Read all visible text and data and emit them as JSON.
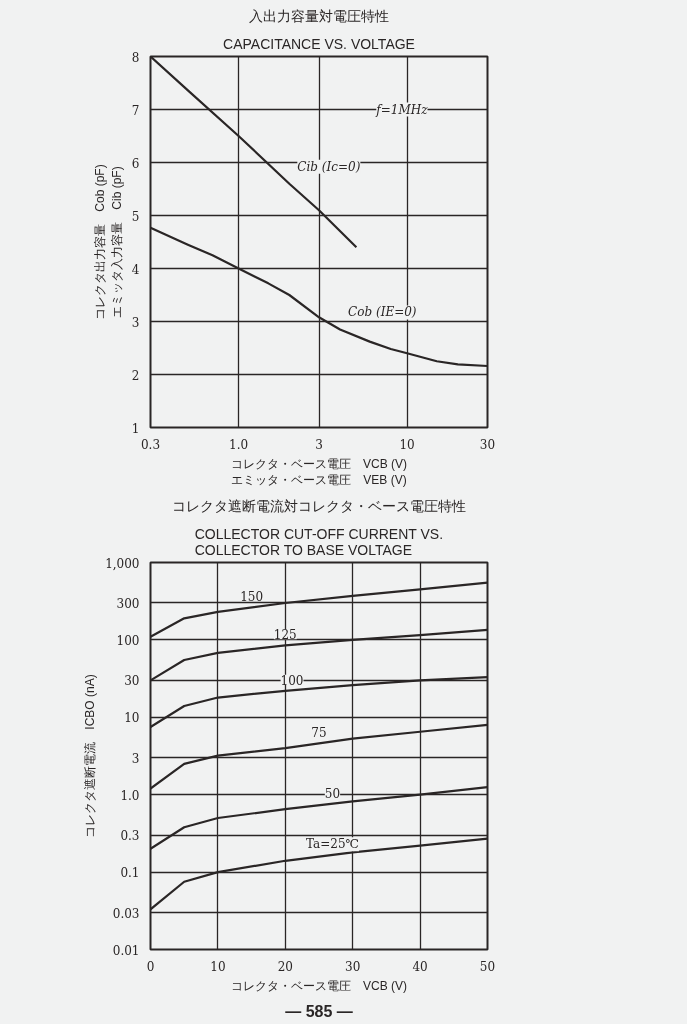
{
  "chart_data": [
    {
      "type": "line",
      "title": "入出力容量対電圧特性",
      "subtitle": "CAPACITANCE VS. VOLTAGE",
      "xlabel": "コレクタ・ベース電圧　VCB (V)\nエミッタ・ベース電圧　VEB (V)",
      "ylabel": "コレクタ出力容量　Cob (pF)\nエミッタ入力容量　Cib (pF)",
      "log": "x",
      "xlim": [
        0.3,
        30
      ],
      "xticks": [
        0.3,
        {
          "value": 1,
          "label": "1.0"
        },
        3,
        10,
        30
      ],
      "ylim": [
        1,
        8
      ],
      "yticks": [
        1,
        2,
        3,
        4,
        5,
        6,
        7,
        8
      ],
      "grid": true,
      "series": [
        {
          "name": "Cib (Ic=0)",
          "color": "#2a2626",
          "x": [
            0.3,
            0.5,
            1,
            2,
            3,
            5
          ],
          "values": [
            8,
            7.36,
            6.5,
            5.6,
            5.1,
            4.4
          ]
        },
        {
          "name": "Cob (IE=0)",
          "color": "#2a2626",
          "x": [
            0.3,
            0.5,
            0.7,
            1,
            1.5,
            2,
            3,
            4,
            6,
            8,
            10,
            15,
            20,
            30
          ],
          "values": [
            4.77,
            4.45,
            4.25,
            4.0,
            3.72,
            3.5,
            3.08,
            2.85,
            2.62,
            2.48,
            2.4,
            2.25,
            2.19,
            2.16
          ]
        }
      ],
      "annotations": [
        "f=1MHz"
      ]
    },
    {
      "type": "line",
      "title": "コレクタ遮断電流対コレクタ・ベース電圧特性",
      "subtitle": "COLLECTOR CUT-OFF CURRENT VS.\nCOLLECTOR TO BASE VOLTAGE",
      "xlabel": "コレクタ・ベース電圧　VCB (V)",
      "ylabel": "コレクタ遮断電流　ICBO (nA)",
      "log": "y",
      "xlim": [
        0,
        50
      ],
      "xticks": [
        0,
        10,
        20,
        30,
        40,
        50
      ],
      "ylim": [
        0.01,
        1000
      ],
      "yticks": [
        0.01,
        0.03,
        0.1,
        0.3,
        {
          "value": 1,
          "label": "1.0"
        },
        3,
        10,
        30,
        100,
        300,
        {
          "value": 1000,
          "label": "1,000"
        }
      ],
      "grid": true,
      "x": [
        0,
        5,
        10,
        20,
        30,
        40,
        50
      ],
      "series": [
        {
          "color": "#2a2626",
          "values": [
            110,
            190,
            230,
            300,
            370,
            450,
            550
          ]
        },
        {
          "color": "#2a2626",
          "values": [
            30,
            55,
            68,
            85,
            100,
            115,
            135
          ]
        },
        {
          "color": "#2a2626",
          "values": [
            7.5,
            14,
            18,
            22,
            26,
            30,
            33
          ]
        },
        {
          "color": "#2a2626",
          "values": [
            1.2,
            2.5,
            3.2,
            4,
            5.3,
            6.5,
            8
          ]
        },
        {
          "color": "#2a2626",
          "values": [
            0.2,
            0.38,
            0.5,
            0.65,
            0.82,
            1.0,
            1.25
          ]
        },
        {
          "color": "#2a2626",
          "values": [
            0.033,
            0.075,
            0.1,
            0.14,
            0.18,
            0.22,
            0.27
          ]
        }
      ],
      "annotations": [
        {
          "text": "150",
          "x": 15,
          "y": 270
        },
        {
          "text": "125",
          "x": 20,
          "y": 85
        },
        {
          "text": "100",
          "x": 21,
          "y": 22
        },
        {
          "text": "75",
          "x": 25,
          "y": 4.6
        },
        {
          "text": "50",
          "x": 27,
          "y": 0.76
        },
        {
          "text": "Ta=25℃",
          "x": 27,
          "y": 0.165
        },
        "— 585 —"
      ]
    }
  ]
}
